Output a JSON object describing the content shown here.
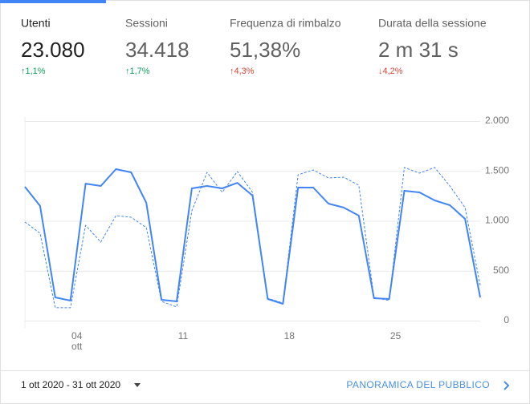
{
  "tabs": [
    {
      "label": "Utenti",
      "value": "23.080",
      "change": "↑1,1%",
      "color": "#0f9d58",
      "selected": true
    },
    {
      "label": "Sessioni",
      "value": "34.418",
      "change": "↑1,7%",
      "color": "#0f9d58",
      "selected": false
    },
    {
      "label": "Frequenza di rimbalzo",
      "value": "51,38%",
      "change": "↑4,3%",
      "color": "#db4437",
      "selected": false
    },
    {
      "label": "Durata della sessione",
      "value": "2 m 31 s",
      "change": "↓4,2%",
      "color": "#db4437",
      "selected": false
    }
  ],
  "chart_data": {
    "type": "line",
    "categories": [
      null,
      null,
      null,
      "04",
      null,
      null,
      null,
      null,
      null,
      null,
      "11",
      null,
      null,
      null,
      null,
      null,
      null,
      "18",
      null,
      null,
      null,
      null,
      null,
      null,
      "25",
      null,
      null,
      null,
      null,
      null,
      null
    ],
    "month_label": "ott",
    "series": [
      {
        "color": "#4285f4",
        "dashed": false,
        "values": [
          1341,
          1149,
          233,
          201,
          1373,
          1349,
          1518,
          1486,
          1181,
          209,
          193,
          1325,
          1349,
          1325,
          1381,
          1253,
          217,
          169,
          1333,
          1333,
          1173,
          1133,
          1052,
          225,
          217,
          1301,
          1285,
          1205,
          1157,
          1020,
          233
        ]
      },
      {
        "color": "#4285f4",
        "dashed": true,
        "values": [
          988,
          876,
          129,
          129,
          956,
          787,
          1052,
          1036,
          932,
          193,
          137,
          1100,
          1486,
          1285,
          1494,
          1285,
          225,
          177,
          1462,
          1510,
          1430,
          1438,
          1357,
          233,
          201,
          1534,
          1478,
          1534,
          1349,
          1133,
          353
        ]
      }
    ],
    "ylim": [
      0,
      2000
    ],
    "yticks": [
      0,
      500,
      {
        "value": 1000,
        "label": "1.000"
      },
      {
        "value": 1500,
        "label": "1.500"
      },
      {
        "value": 2000,
        "label": "2.000"
      }
    ],
    "grid": true
  },
  "footer": {
    "date_range": "1 ott 2020 - 31 ott 2020",
    "link": "PANORAMICA DEL PUBBLICO"
  }
}
